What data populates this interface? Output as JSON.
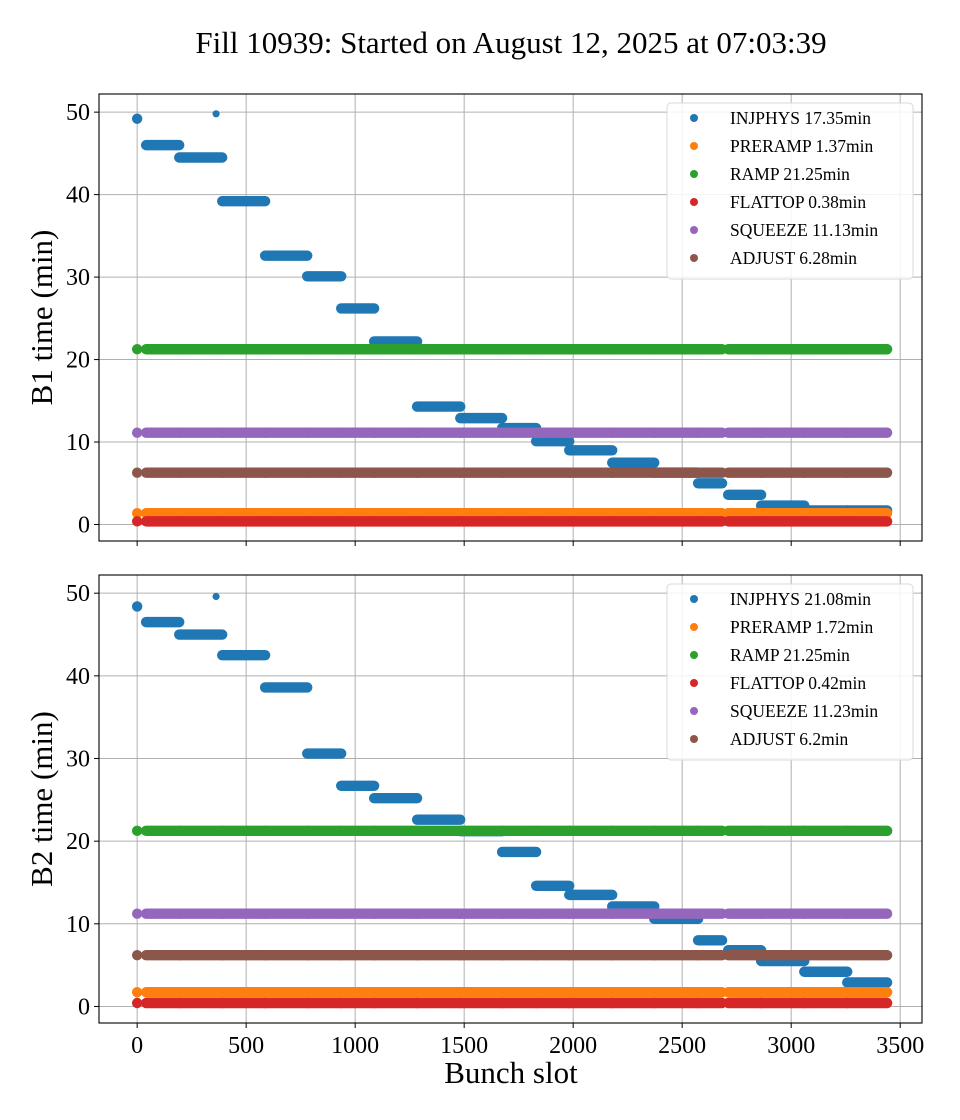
{
  "chart_data": {
    "type": "scatter",
    "title": "Fill 10939: Started on August 12, 2025 at 07:03:39",
    "xlabel": "Bunch slot",
    "xlim": [
      -175,
      3600
    ],
    "xticks": [
      0,
      500,
      1000,
      1500,
      2000,
      2500,
      3000,
      3500
    ],
    "grid": true,
    "legend_placement": "top-right",
    "bunch_groups": [
      [
        0,
        0
      ],
      [
        41,
        193
      ],
      [
        193,
        390
      ],
      [
        390,
        587
      ],
      [
        587,
        780
      ],
      [
        780,
        936
      ],
      [
        936,
        1087
      ],
      [
        1087,
        1284
      ],
      [
        1284,
        1482
      ],
      [
        1482,
        1674
      ],
      [
        1674,
        1830
      ],
      [
        1830,
        1982
      ],
      [
        1982,
        2179
      ],
      [
        2179,
        2372
      ],
      [
        2372,
        2573
      ],
      [
        2573,
        2683
      ],
      [
        2711,
        2862
      ],
      [
        2862,
        3060
      ],
      [
        3060,
        3257
      ],
      [
        3257,
        3440
      ]
    ],
    "series_colors": {
      "INJPHYS": "#1f77b4",
      "PRERAMP": "#ff7f0e",
      "RAMP": "#2ca02c",
      "FLATTOP": "#d62728",
      "SQUEEZE": "#9467bd",
      "ADJUST": "#8c564b"
    },
    "panels": [
      {
        "ylabel": "B1 time (min)",
        "ylim": [
          -2,
          52.2
        ],
        "yticks": [
          0,
          10,
          20,
          30,
          40,
          50
        ],
        "legend": [
          {
            "name": "INJPHYS",
            "label": "INJPHYS 17.35min"
          },
          {
            "name": "PRERAMP",
            "label": "PRERAMP 1.37min"
          },
          {
            "name": "RAMP",
            "label": "RAMP 21.25min"
          },
          {
            "name": "FLATTOP",
            "label": "FLATTOP 0.38min"
          },
          {
            "name": "SQUEEZE",
            "label": "SQUEEZE 11.13min"
          },
          {
            "name": "ADJUST",
            "label": "ADJUST 6.28min"
          }
        ],
        "series": [
          {
            "name": "INJPHYS",
            "values": [
              49.2,
              46.0,
              44.5,
              39.2,
              32.6,
              30.1,
              26.2,
              22.2,
              14.3,
              12.9,
              11.7,
              10.1,
              9.0,
              7.5,
              6.3,
              5.0,
              3.6,
              2.3,
              1.7,
              1.7
            ],
            "extra_points": [
              {
                "x": 362,
                "y": 49.8
              }
            ]
          },
          {
            "name": "PRERAMP",
            "value": 1.37
          },
          {
            "name": "RAMP",
            "value": 21.25
          },
          {
            "name": "FLATTOP",
            "value": 0.38
          },
          {
            "name": "SQUEEZE",
            "value": 11.13
          },
          {
            "name": "ADJUST",
            "value": 6.28
          }
        ]
      },
      {
        "ylabel": "B2 time (min)",
        "ylim": [
          -2,
          52.2
        ],
        "yticks": [
          0,
          10,
          20,
          30,
          40,
          50
        ],
        "legend": [
          {
            "name": "INJPHYS",
            "label": "INJPHYS 21.08min"
          },
          {
            "name": "PRERAMP",
            "label": "PRERAMP 1.72min"
          },
          {
            "name": "RAMP",
            "label": "RAMP 21.25min"
          },
          {
            "name": "FLATTOP",
            "label": "FLATTOP 0.42min"
          },
          {
            "name": "SQUEEZE",
            "label": "SQUEEZE 11.23min"
          },
          {
            "name": "ADJUST",
            "label": "ADJUST 6.2min"
          }
        ],
        "series": [
          {
            "name": "INJPHYS",
            "values": [
              48.4,
              46.5,
              45.0,
              42.5,
              38.6,
              30.6,
              26.7,
              25.2,
              22.6,
              21.2,
              18.7,
              14.6,
              13.5,
              12.1,
              10.6,
              8.0,
              6.8,
              5.5,
              4.2,
              2.9
            ],
            "extra_points": [
              {
                "x": 362,
                "y": 49.6
              }
            ]
          },
          {
            "name": "PRERAMP",
            "value": 1.72
          },
          {
            "name": "RAMP",
            "value": 21.25
          },
          {
            "name": "FLATTOP",
            "value": 0.42
          },
          {
            "name": "SQUEEZE",
            "value": 11.23
          },
          {
            "name": "ADJUST",
            "value": 6.2
          }
        ]
      }
    ]
  }
}
